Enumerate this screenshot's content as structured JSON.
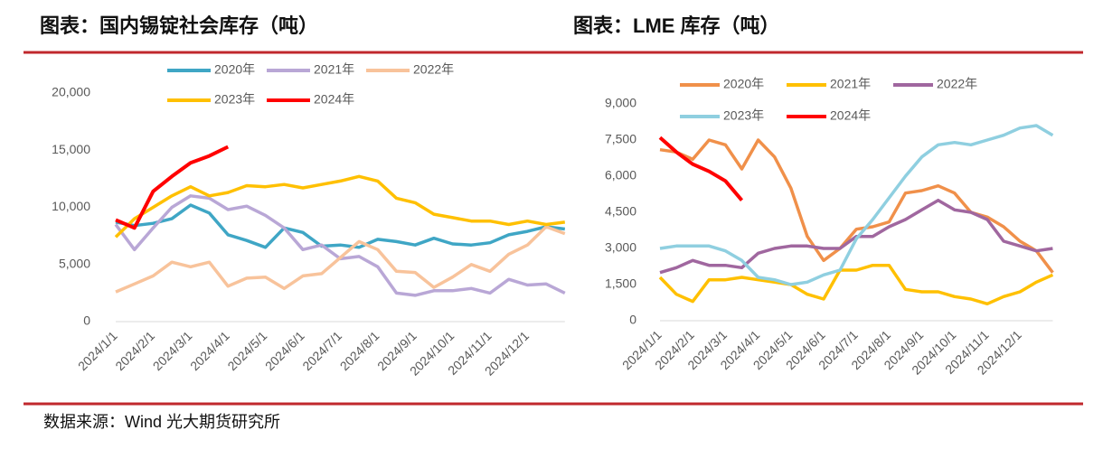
{
  "chart_data": [
    {
      "type": "line",
      "title": "图表：国内锡锭社会库存（吨）",
      "categories": [
        "2024/1/1",
        null,
        "2024/2/1",
        null,
        "2024/3/1",
        null,
        "2024/4/1",
        null,
        "2024/5/1",
        null,
        "2024/6/1",
        null,
        "2024/7/1",
        null,
        "2024/8/1",
        null,
        "2024/9/1",
        null,
        "2024/10/1",
        null,
        "2024/11/1",
        null,
        "2024/12/1",
        null,
        null
      ],
      "ylim": [
        0,
        20000
      ],
      "yticks": [
        0,
        {
          "value": 5000,
          "label": "5,000"
        },
        {
          "value": 10000,
          "label": "10,000"
        },
        {
          "value": 15000,
          "label": "15,000"
        },
        {
          "value": 20000,
          "label": "20,000"
        }
      ],
      "series": [
        {
          "name": "2020年",
          "color": "#3fa6c5",
          "values": [
            8700,
            8400,
            8600,
            9000,
            10200,
            9500,
            7600,
            7100,
            6500,
            8200,
            7800,
            6600,
            6700,
            6500,
            7200,
            7000,
            6700,
            7300,
            6800,
            6700,
            6900,
            7600,
            7900,
            8300,
            8100
          ]
        },
        {
          "name": "2021年",
          "color": "#b9a7d6",
          "values": [
            8500,
            6300,
            8200,
            10000,
            11000,
            10800,
            9800,
            10100,
            9300,
            8200,
            6300,
            6700,
            5500,
            5700,
            4800,
            2500,
            2300,
            2700,
            2700,
            2900,
            2500,
            3700,
            3200,
            3300,
            2500
          ]
        },
        {
          "name": "2022年",
          "color": "#f8c39b",
          "values": [
            2600,
            3300,
            4000,
            5200,
            4800,
            5200,
            3100,
            3800,
            3900,
            2900,
            4000,
            4200,
            5600,
            7000,
            6300,
            4400,
            4300,
            3000,
            3900,
            5000,
            4400,
            5900,
            6700,
            8300,
            7700
          ]
        },
        {
          "name": "2023年",
          "color": "#ffc000",
          "values": [
            7400,
            9000,
            10000,
            11000,
            11800,
            11000,
            11300,
            11900,
            11800,
            12000,
            11700,
            12000,
            12300,
            12700,
            12300,
            10800,
            10400,
            9400,
            9100,
            8800,
            8800,
            8500,
            8800,
            8500,
            8700
          ]
        },
        {
          "name": "2024年",
          "color": "#ff0000",
          "values": [
            8900,
            8200,
            11400,
            12700,
            13900,
            14500,
            15300,
            null,
            null,
            null,
            null,
            null,
            null,
            null,
            null,
            null,
            null,
            null,
            null,
            null,
            null,
            null,
            null,
            null,
            null
          ]
        }
      ]
    },
    {
      "type": "line",
      "title": "图表：LME 库存（吨）",
      "categories": [
        "2024/1/1",
        null,
        "2024/2/1",
        null,
        "2024/3/1",
        null,
        "2024/4/1",
        null,
        "2024/5/1",
        null,
        "2024/6/1",
        null,
        "2024/7/1",
        null,
        "2024/8/1",
        null,
        "2024/9/1",
        null,
        "2024/10/1",
        null,
        "2024/11/1",
        null,
        "2024/12/1",
        null,
        null
      ],
      "ylim": [
        0,
        9000
      ],
      "yticks": [
        0,
        {
          "value": 1500,
          "label": "1,500"
        },
        {
          "value": 3000,
          "label": "3,000"
        },
        {
          "value": 4500,
          "label": "4,500"
        },
        {
          "value": 6000,
          "label": "6,000"
        },
        {
          "value": 7500,
          "label": "7,500"
        },
        {
          "value": 9000,
          "label": "9,000"
        }
      ],
      "series": [
        {
          "name": "2020年",
          "color": "#f0904a",
          "values": [
            7100,
            7000,
            6700,
            7500,
            7300,
            6300,
            7500,
            6800,
            5500,
            3500,
            2500,
            3000,
            3800,
            3900,
            4100,
            5300,
            5400,
            5600,
            5300,
            4500,
            4300,
            3900,
            3300,
            2900,
            2000
          ]
        },
        {
          "name": "2021年",
          "color": "#ffc000",
          "values": [
            1800,
            1100,
            800,
            1700,
            1700,
            1800,
            1700,
            1600,
            1500,
            1100,
            900,
            2100,
            2100,
            2300,
            2300,
            1300,
            1200,
            1200,
            1000,
            900,
            700,
            1000,
            1200,
            1600,
            1900
          ]
        },
        {
          "name": "2022年",
          "color": "#a0679f",
          "values": [
            2000,
            2200,
            2500,
            2300,
            2300,
            2200,
            2800,
            3000,
            3100,
            3100,
            3000,
            3000,
            3500,
            3500,
            3900,
            4200,
            4600,
            5000,
            4600,
            4500,
            4200,
            3300,
            3100,
            2900,
            3000
          ]
        },
        {
          "name": "2023年",
          "color": "#8fcfe0",
          "values": [
            3000,
            3100,
            3100,
            3100,
            2900,
            2500,
            1800,
            1700,
            1500,
            1600,
            1900,
            2100,
            3400,
            4200,
            5100,
            6000,
            6800,
            7300,
            7400,
            7300,
            7500,
            7700,
            8000,
            8100,
            7700
          ]
        },
        {
          "name": "2024年",
          "color": "#ff0000",
          "values": [
            7600,
            7000,
            6500,
            6200,
            5800,
            5000,
            null,
            null,
            null,
            null,
            null,
            null,
            null,
            null,
            null,
            null,
            null,
            null,
            null,
            null,
            null,
            null,
            null,
            null,
            null
          ]
        }
      ]
    }
  ],
  "source": "数据来源：Wind 光大期货研究所"
}
